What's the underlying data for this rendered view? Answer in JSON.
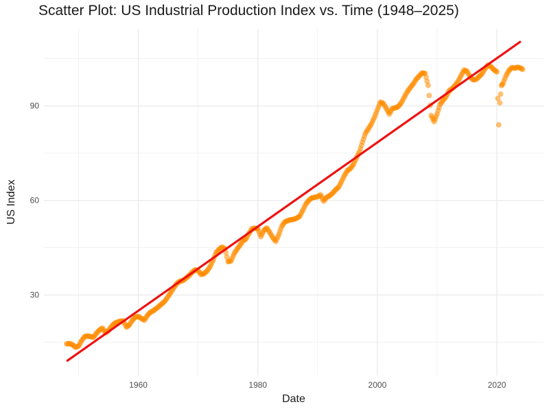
{
  "chart_data": {
    "type": "scatter",
    "title": "Scatter Plot: US Industrial Production Index vs. Time (1948–2025)",
    "xlabel": "Date",
    "ylabel": "US Index",
    "xlim": [
      1944.2,
      2027.8
    ],
    "ylim": [
      4.5,
      114.5
    ],
    "x_ticks": [
      1960,
      1980,
      2000,
      2020
    ],
    "x_tick_labels": [
      "1960",
      "1980",
      "2000",
      "2020"
    ],
    "y_ticks": [
      30,
      60,
      90
    ],
    "y_tick_labels": [
      "30",
      "60",
      "90"
    ],
    "grid": true,
    "legend": "none",
    "colors": {
      "points": "#FF8C00",
      "trend": "#EE1111",
      "grid": "#EBEBEB"
    },
    "series": [
      {
        "type": "scatter",
        "values": [
          [
            1948.0,
            14.5
          ],
          [
            1948.5,
            14.6
          ],
          [
            1949.0,
            14.2
          ],
          [
            1949.5,
            13.4
          ],
          [
            1950.0,
            13.8
          ],
          [
            1950.5,
            15.5
          ],
          [
            1951.0,
            16.8
          ],
          [
            1951.5,
            17.0
          ],
          [
            1952.0,
            16.8
          ],
          [
            1952.5,
            16.6
          ],
          [
            1953.0,
            17.9
          ],
          [
            1953.5,
            18.9
          ],
          [
            1954.0,
            19.5
          ],
          [
            1954.5,
            18.0
          ],
          [
            1955.0,
            18.7
          ],
          [
            1955.5,
            20.0
          ],
          [
            1956.0,
            21.0
          ],
          [
            1956.5,
            21.4
          ],
          [
            1957.0,
            21.7
          ],
          [
            1957.5,
            21.8
          ],
          [
            1958.0,
            19.8
          ],
          [
            1958.5,
            20.5
          ],
          [
            1959.0,
            22.0
          ],
          [
            1959.5,
            23.0
          ],
          [
            1960.0,
            23.2
          ],
          [
            1960.5,
            22.6
          ],
          [
            1961.0,
            22.0
          ],
          [
            1961.5,
            23.5
          ],
          [
            1962.0,
            24.5
          ],
          [
            1962.5,
            25.0
          ],
          [
            1963.0,
            25.7
          ],
          [
            1963.5,
            26.5
          ],
          [
            1964.0,
            27.3
          ],
          [
            1964.5,
            28.2
          ],
          [
            1965.0,
            29.6
          ],
          [
            1965.5,
            31.0
          ],
          [
            1966.0,
            32.5
          ],
          [
            1966.5,
            33.8
          ],
          [
            1967.0,
            34.4
          ],
          [
            1967.5,
            34.6
          ],
          [
            1968.0,
            35.4
          ],
          [
            1968.5,
            36.2
          ],
          [
            1969.0,
            37.2
          ],
          [
            1969.5,
            38.0
          ],
          [
            1970.0,
            37.8
          ],
          [
            1970.5,
            36.5
          ],
          [
            1971.0,
            36.8
          ],
          [
            1971.5,
            37.6
          ],
          [
            1972.0,
            39.0
          ],
          [
            1972.5,
            41.0
          ],
          [
            1973.0,
            43.4
          ],
          [
            1973.5,
            44.5
          ],
          [
            1974.0,
            45.2
          ],
          [
            1974.5,
            44.7
          ],
          [
            1975.0,
            40.6
          ],
          [
            1975.5,
            40.8
          ],
          [
            1976.0,
            43.0
          ],
          [
            1976.5,
            44.5
          ],
          [
            1977.0,
            45.8
          ],
          [
            1977.5,
            47.2
          ],
          [
            1978.0,
            47.8
          ],
          [
            1978.5,
            49.5
          ],
          [
            1979.0,
            51.0
          ],
          [
            1979.5,
            51.2
          ],
          [
            1980.0,
            51.0
          ],
          [
            1980.5,
            48.5
          ],
          [
            1981.0,
            50.5
          ],
          [
            1981.5,
            51.3
          ],
          [
            1982.0,
            49.8
          ],
          [
            1982.5,
            48.2
          ],
          [
            1983.0,
            47.0
          ],
          [
            1983.5,
            49.2
          ],
          [
            1984.0,
            51.8
          ],
          [
            1984.5,
            53.2
          ],
          [
            1985.0,
            53.6
          ],
          [
            1985.5,
            53.9
          ],
          [
            1986.0,
            54.0
          ],
          [
            1986.5,
            54.4
          ],
          [
            1987.0,
            55.0
          ],
          [
            1987.5,
            56.8
          ],
          [
            1988.0,
            58.8
          ],
          [
            1988.5,
            60.0
          ],
          [
            1989.0,
            60.8
          ],
          [
            1989.5,
            61.0
          ],
          [
            1990.0,
            61.2
          ],
          [
            1990.5,
            61.8
          ],
          [
            1991.0,
            59.8
          ],
          [
            1991.5,
            61.0
          ],
          [
            1992.0,
            61.5
          ],
          [
            1992.5,
            62.3
          ],
          [
            1993.0,
            63.4
          ],
          [
            1993.5,
            64.2
          ],
          [
            1994.0,
            66.0
          ],
          [
            1994.5,
            68.0
          ],
          [
            1995.0,
            69.5
          ],
          [
            1995.5,
            70.2
          ],
          [
            1996.0,
            71.5
          ],
          [
            1996.5,
            73.5
          ],
          [
            1997.0,
            75.5
          ],
          [
            1997.5,
            78.5
          ],
          [
            1998.0,
            81.3
          ],
          [
            1998.5,
            82.8
          ],
          [
            1999.0,
            84.3
          ],
          [
            1999.5,
            86.4
          ],
          [
            2000.0,
            88.8
          ],
          [
            2000.5,
            91.2
          ],
          [
            2001.0,
            90.8
          ],
          [
            2001.5,
            89.2
          ],
          [
            2002.0,
            87.4
          ],
          [
            2002.5,
            89.2
          ],
          [
            2003.0,
            89.4
          ],
          [
            2003.5,
            89.8
          ],
          [
            2004.0,
            91.0
          ],
          [
            2004.5,
            92.8
          ],
          [
            2005.0,
            94.5
          ],
          [
            2005.5,
            95.8
          ],
          [
            2006.0,
            97.0
          ],
          [
            2006.5,
            98.5
          ],
          [
            2007.0,
            99.5
          ],
          [
            2007.5,
            100.5
          ],
          [
            2008.0,
            100.3
          ],
          [
            2008.5,
            96.5
          ],
          [
            2009.0,
            87.0
          ],
          [
            2009.5,
            85.0
          ],
          [
            2010.0,
            87.5
          ],
          [
            2010.5,
            90.5
          ],
          [
            2011.0,
            91.8
          ],
          [
            2011.5,
            93.0
          ],
          [
            2012.0,
            94.8
          ],
          [
            2012.5,
            95.5
          ],
          [
            2013.0,
            96.5
          ],
          [
            2013.5,
            97.8
          ],
          [
            2014.0,
            99.6
          ],
          [
            2014.5,
            101.4
          ],
          [
            2015.0,
            101.0
          ],
          [
            2015.5,
            99.3
          ],
          [
            2016.0,
            98.3
          ],
          [
            2016.5,
            98.4
          ],
          [
            2017.0,
            99.3
          ],
          [
            2017.5,
            100.2
          ],
          [
            2018.0,
            101.8
          ],
          [
            2018.5,
            103.0
          ],
          [
            2019.0,
            102.5
          ],
          [
            2019.5,
            101.5
          ],
          [
            2020.0,
            100.8
          ],
          [
            2020.3,
            84.0
          ],
          [
            2020.5,
            91.0
          ],
          [
            2020.75,
            96.5
          ],
          [
            2021.0,
            97.0
          ],
          [
            2021.5,
            99.5
          ],
          [
            2022.0,
            101.2
          ],
          [
            2022.5,
            102.2
          ],
          [
            2023.0,
            102.0
          ],
          [
            2023.5,
            102.3
          ],
          [
            2024.0,
            102.0
          ],
          [
            2024.3,
            101.6
          ]
        ]
      },
      {
        "type": "line",
        "values": [
          [
            1948.0,
            9.0
          ],
          [
            2024.0,
            110.5
          ]
        ]
      }
    ]
  }
}
